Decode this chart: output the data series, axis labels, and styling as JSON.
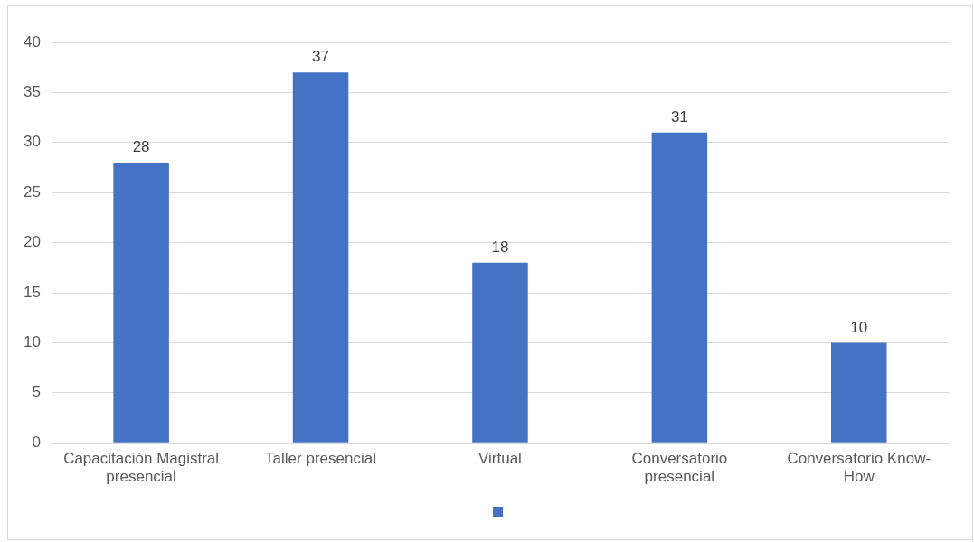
{
  "chart_data": {
    "type": "bar",
    "categories": [
      "Capacitación Magistral presencial",
      "Taller presencial",
      "Virtual",
      "Conversatorio presencial",
      "Conversatorio Know-How"
    ],
    "series": [
      {
        "color": "#4472c4",
        "values": [
          28,
          37,
          18,
          31,
          10
        ]
      }
    ],
    "ylim": [
      0,
      40
    ],
    "yticks": [
      0,
      5,
      10,
      15,
      20,
      25,
      30,
      35,
      40
    ],
    "grid": "y",
    "data_labels": true
  }
}
